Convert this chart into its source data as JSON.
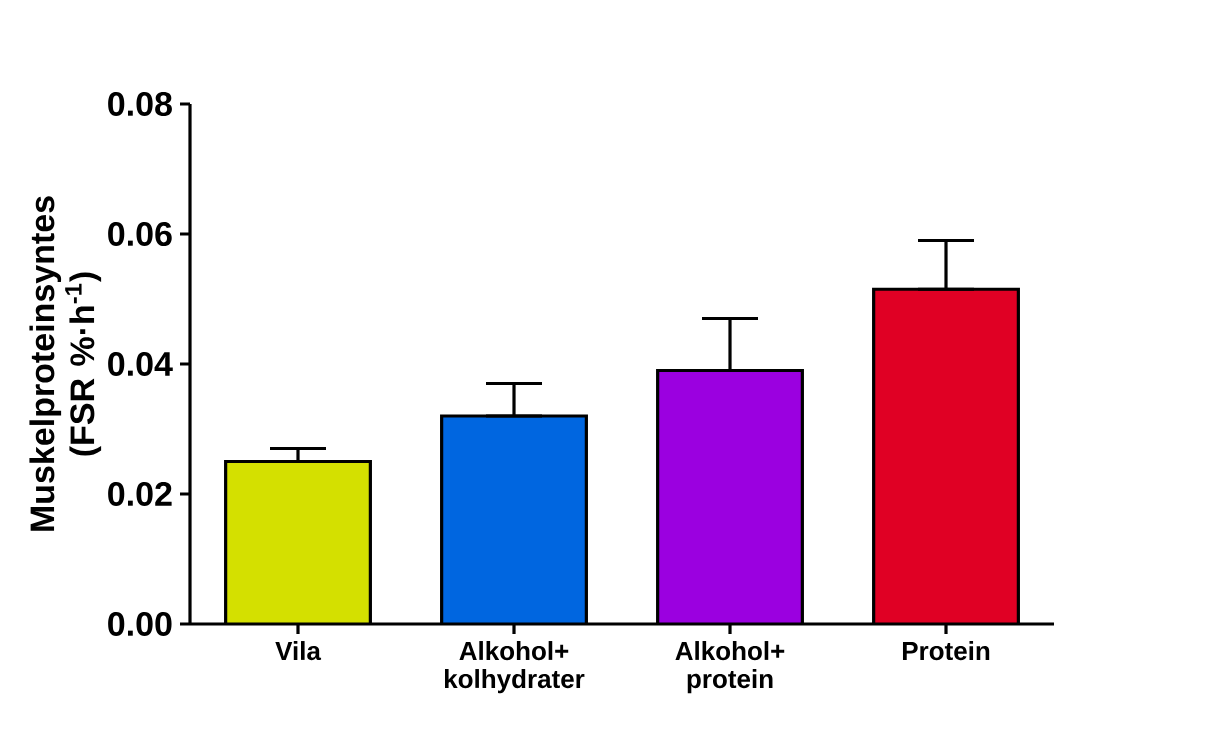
{
  "chart_data": {
    "type": "bar",
    "ylabel": "Muskelproteinsyntes (FSR %·h$^{-1}$)",
    "categories": [
      "Vila",
      "Alkohol+ kolhydrater",
      "Alkohol+ protein",
      "Protein"
    ],
    "values": [
      0.025,
      0.032,
      0.039,
      0.0515
    ],
    "colors": [
      "#d4e000",
      "#0066e0",
      "#9b00e0",
      "#e00024"
    ],
    "errors": [
      [
        0.025,
        0.027
      ],
      [
        0.032,
        0.037
      ],
      [
        0.039,
        0.047
      ],
      [
        0.0515,
        0.059
      ]
    ],
    "ylim": [
      0,
      0.08
    ],
    "yticks": [
      {
        "value": 0,
        "label": "0.00"
      },
      0.02,
      0.04,
      0.06,
      0.08
    ]
  }
}
